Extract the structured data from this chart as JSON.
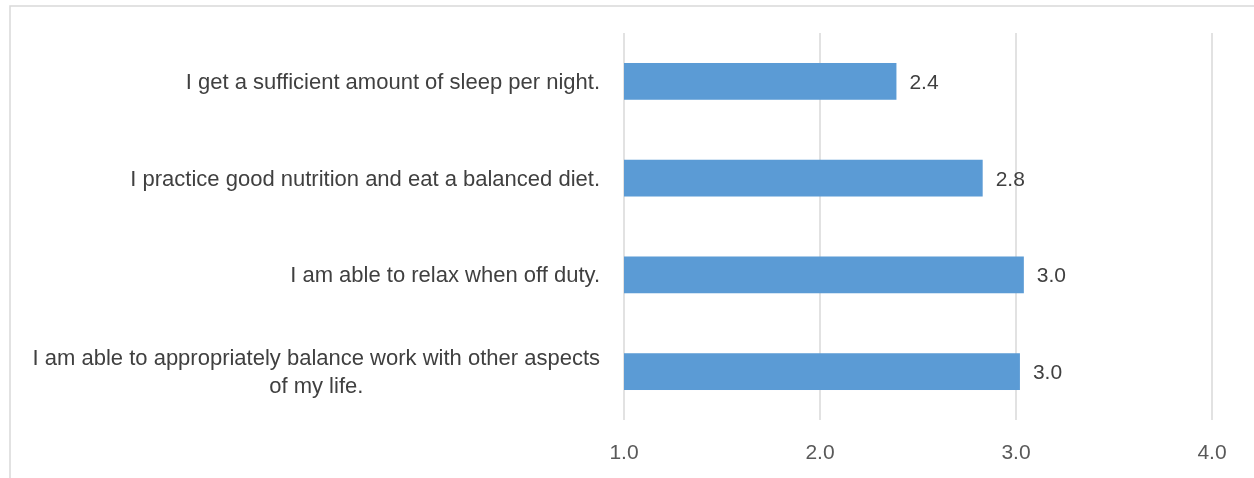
{
  "chart_data": {
    "type": "bar",
    "orientation": "horizontal",
    "categories": [
      "I get a sufficient amount of sleep per night.",
      "I practice good nutrition and eat a balanced diet.",
      "I am able to relax when off duty.",
      "I am able to appropriately balance work with other aspects of my life."
    ],
    "values": [
      2.39,
      2.83,
      3.04,
      3.02
    ],
    "value_labels": [
      "2.4",
      "2.8",
      "3.0",
      "3.0"
    ],
    "color": "#5b9bd5",
    "xlim": [
      1,
      4
    ],
    "xticks": [
      {
        "value": 1,
        "label": "1.0"
      },
      {
        "value": 2,
        "label": "2.0"
      },
      {
        "value": 3,
        "label": "3.0"
      },
      {
        "value": 4,
        "label": "4.0"
      }
    ],
    "grid": "x"
  }
}
